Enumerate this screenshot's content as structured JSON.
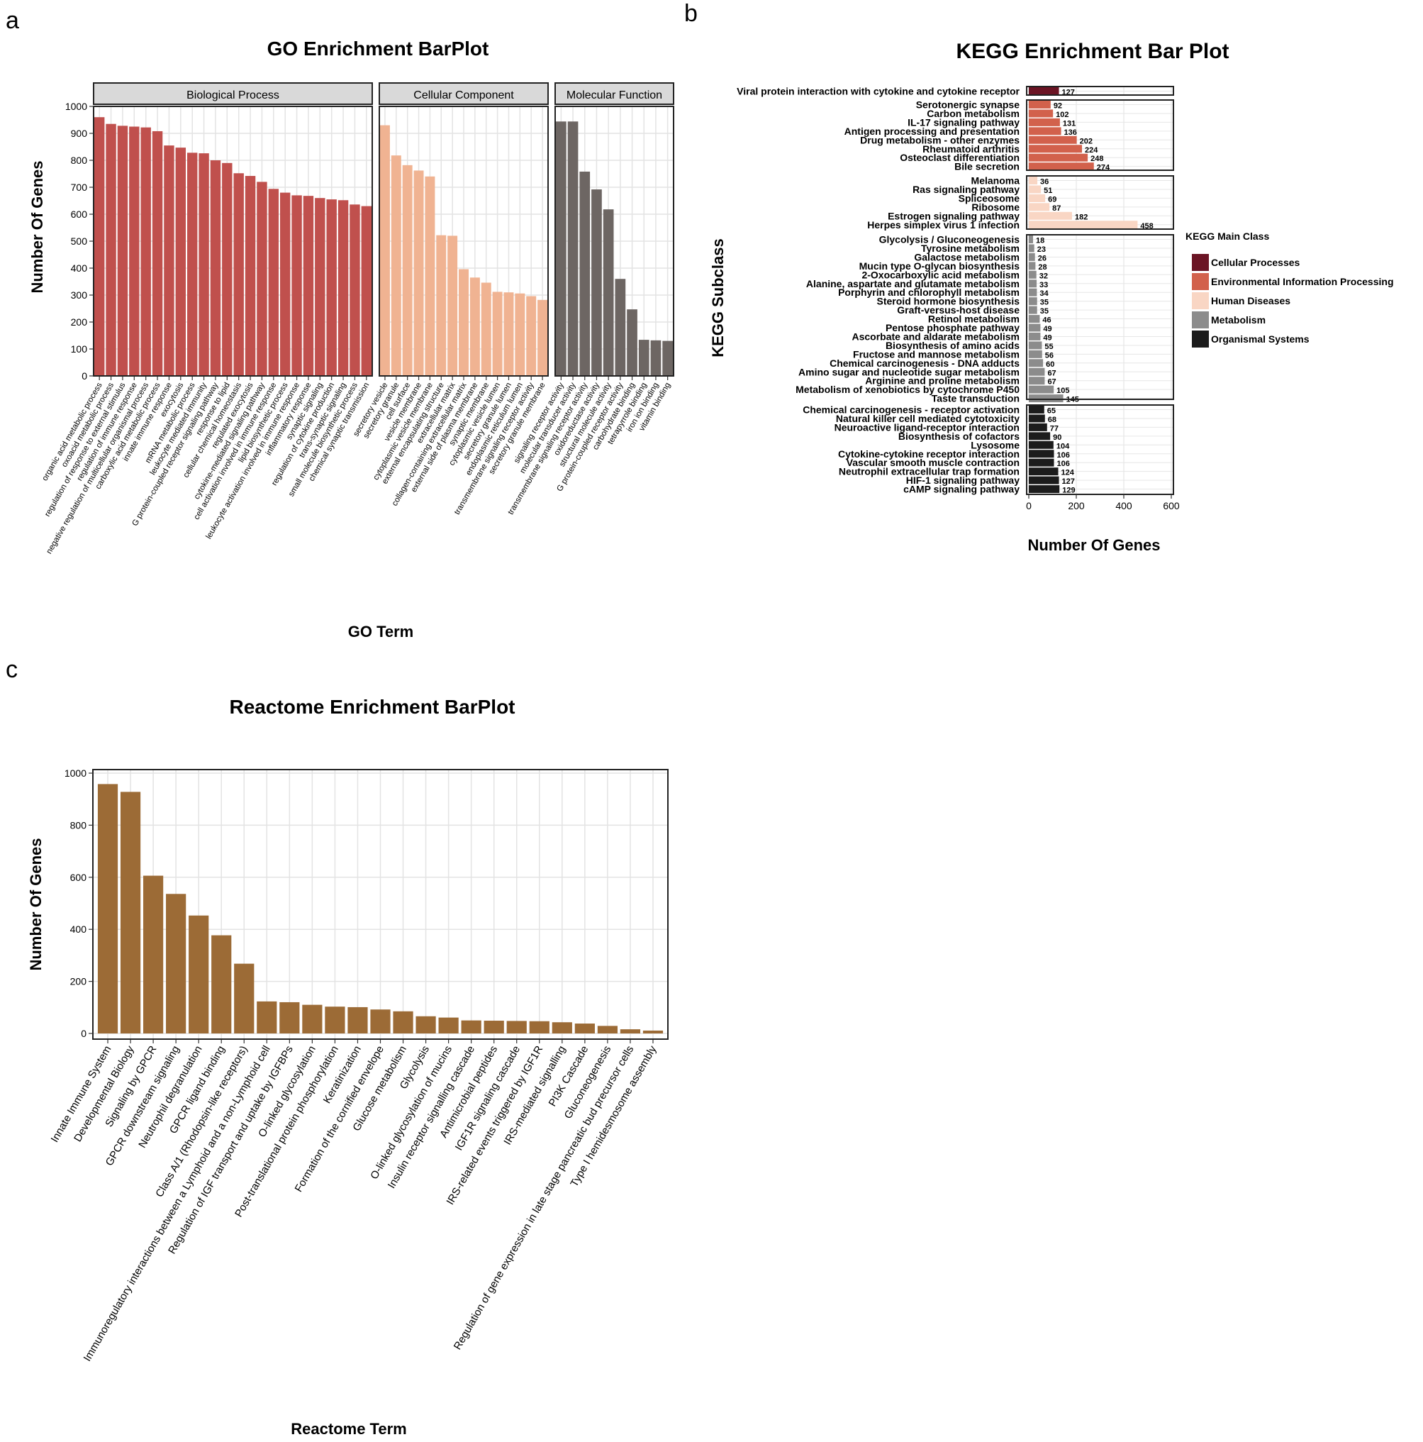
{
  "panel_labels": [
    "a",
    "b",
    "c"
  ],
  "chart_data": [
    {
      "type": "bar",
      "title": "GO Enrichment BarPlot",
      "xlabel": "GO Term",
      "ylabel": "Number Of Genes",
      "ylim": [
        0,
        1000
      ],
      "yticks": [
        0,
        100,
        200,
        300,
        400,
        500,
        600,
        700,
        800,
        900,
        1000
      ],
      "grid": true,
      "facets": [
        {
          "name": "Biological Process",
          "color": "#c0504d",
          "categories": [
            "organic acid metabolic process",
            "oxoacid metabolic process",
            "regulation of response to external stimulus",
            "regulation of immune response",
            "negative regulation of multicellular organismal process",
            "carboxylic acid metabolic process",
            "innate immune response",
            "exocytosis",
            "mRNA metabolic process",
            "leukocyte mediated immunity",
            "G protein-coupled receptor signaling pathway",
            "response to lipid",
            "cellular chemical homeostasis",
            "regulated exocytosis",
            "cytokine-mediated signaling pathway",
            "cell activation involved in immune response",
            "lipid biosynthetic process",
            "leukocyte activation involved in immune response",
            "inflammatory response",
            "synaptic signaling",
            "regulation of cytokine production",
            "trans-synaptic signaling",
            "small molecule biosynthetic process",
            "chemical synaptic transmission"
          ],
          "values": [
            960,
            935,
            928,
            925,
            922,
            908,
            855,
            847,
            828,
            826,
            800,
            790,
            752,
            742,
            720,
            694,
            680,
            670,
            668,
            660,
            655,
            652,
            636,
            630
          ]
        },
        {
          "name": "Cellular Component",
          "color": "#f0b392",
          "categories": [
            "secretory vesicle",
            "secretory granule",
            "cell surface",
            "vesicle membrane",
            "cytoplasmic vesicle membrane",
            "external encapsulating structure",
            "extracellular matrix",
            "collagen-containing extracellular matrix",
            "external side of plasma membrane",
            "synaptic membrane",
            "cytoplasmic vesicle lumen",
            "secretory granule lumen",
            "endoplasmic reticulum lumen",
            "transmembrane signaling receptor activity",
            "secretory granule membrane"
          ],
          "values": [
            930,
            818,
            782,
            762,
            740,
            522,
            520,
            396,
            365,
            346,
            312,
            310,
            306,
            296,
            282
          ]
        },
        {
          "name": "Molecular Function",
          "color": "#6d6663",
          "categories": [
            "signaling receptor activity",
            "molecular transducer activity",
            "transmembrane signaling receptor activity",
            "oxidoreductase activity",
            "structural molecule activity",
            "G protein-coupled receptor activity",
            "carbohydrate binding",
            "tetrapyrrole binding",
            "iron ion binding",
            "vitamin binding"
          ],
          "values": [
            944,
            944,
            758,
            692,
            618,
            360,
            247,
            134,
            132,
            130
          ]
        }
      ]
    },
    {
      "type": "bar",
      "orientation": "horizontal",
      "title": "KEGG Enrichment Bar Plot",
      "xlabel": "Number Of Genes",
      "ylabel": "KEGG Subclass",
      "xlim": [
        0,
        600
      ],
      "xticks": [
        0,
        200,
        400,
        600
      ],
      "grid": true,
      "legend": {
        "title": "KEGG Main Class",
        "placement": "right",
        "entries": [
          {
            "label": "Cellular Processes",
            "color": "#6b1424"
          },
          {
            "label": "Environmental Information Processing",
            "color": "#d2614c"
          },
          {
            "label": "Human Diseases",
            "color": "#f9d6c4"
          },
          {
            "label": "Metabolism",
            "color": "#8c8c8c"
          },
          {
            "label": "Organismal Systems",
            "color": "#1c1c1c"
          }
        ]
      },
      "groups": [
        {
          "name": "Cellular Processes",
          "color": "#6b1424",
          "items": [
            {
              "label": "Viral protein interaction with cytokine and cytokine receptor",
              "value": 127
            }
          ]
        },
        {
          "name": "Environmental Information Processing",
          "color": "#d2614c",
          "items": [
            {
              "label": "Serotonergic synapse",
              "value": 92
            },
            {
              "label": "Carbon metabolism",
              "value": 102
            },
            {
              "label": "IL-17 signaling pathway",
              "value": 131
            },
            {
              "label": "Antigen processing and presentation",
              "value": 136
            },
            {
              "label": "Drug metabolism - other enzymes",
              "value": 202
            },
            {
              "label": "Rheumatoid arthritis",
              "value": 224
            },
            {
              "label": "Osteoclast differentiation",
              "value": 248
            },
            {
              "label": "Bile secretion",
              "value": 274
            }
          ]
        },
        {
          "name": "Human Diseases",
          "color": "#f9d6c4",
          "items": [
            {
              "label": "Melanoma",
              "value": 36
            },
            {
              "label": "Ras signaling pathway",
              "value": 51
            },
            {
              "label": "Spliceosome",
              "value": 69
            },
            {
              "label": "Ribosome",
              "value": 87
            },
            {
              "label": "Estrogen signaling pathway",
              "value": 182
            },
            {
              "label": "Herpes simplex virus 1 infection",
              "value": 458
            }
          ]
        },
        {
          "name": "Metabolism",
          "color": "#8c8c8c",
          "items": [
            {
              "label": "Glycolysis / Gluconeogenesis",
              "value": 18
            },
            {
              "label": "Tyrosine metabolism",
              "value": 23
            },
            {
              "label": "Galactose metabolism",
              "value": 26
            },
            {
              "label": "Mucin type O-glycan biosynthesis",
              "value": 28
            },
            {
              "label": "2-Oxocarboxylic acid metabolism",
              "value": 32
            },
            {
              "label": "Alanine, aspartate and glutamate metabolism",
              "value": 33
            },
            {
              "label": "Porphyrin and chlorophyll metabolism",
              "value": 34
            },
            {
              "label": "Steroid hormone biosynthesis",
              "value": 35
            },
            {
              "label": "Graft-versus-host disease",
              "value": 35
            },
            {
              "label": "Retinol metabolism",
              "value": 46
            },
            {
              "label": "Pentose phosphate pathway",
              "value": 49
            },
            {
              "label": "Ascorbate and aldarate metabolism",
              "value": 49
            },
            {
              "label": "Biosynthesis of amino acids",
              "value": 55
            },
            {
              "label": "Fructose and mannose metabolism",
              "value": 56
            },
            {
              "label": "Chemical carcinogenesis - DNA adducts",
              "value": 60
            },
            {
              "label": "Amino sugar and nucleotide sugar metabolism",
              "value": 67
            },
            {
              "label": "Arginine and proline metabolism",
              "value": 67
            },
            {
              "label": "Metabolism of xenobiotics by cytochrome P450",
              "value": 105
            },
            {
              "label": "Taste transduction",
              "value": 145
            }
          ]
        },
        {
          "name": "Organismal Systems",
          "color": "#1c1c1c",
          "items": [
            {
              "label": "Chemical carcinogenesis - receptor activation",
              "value": 65
            },
            {
              "label": "Natural killer cell mediated cytotoxicity",
              "value": 68
            },
            {
              "label": "Neuroactive ligand-receptor interaction",
              "value": 77
            },
            {
              "label": "Biosynthesis of cofactors",
              "value": 90
            },
            {
              "label": "Lysosome",
              "value": 104
            },
            {
              "label": "Cytokine-cytokine receptor interaction",
              "value": 106
            },
            {
              "label": "Vascular smooth muscle contraction",
              "value": 106
            },
            {
              "label": "Neutrophil extracellular trap formation",
              "value": 124
            },
            {
              "label": "HIF-1 signaling pathway",
              "value": 127
            },
            {
              "label": "cAMP signaling pathway",
              "value": 129
            }
          ]
        }
      ]
    },
    {
      "type": "bar",
      "title": "Reactome Enrichment BarPlot",
      "xlabel": "Reactome Term",
      "ylabel": "Number Of Genes",
      "ylim": [
        0,
        1000
      ],
      "yticks": [
        0,
        200,
        400,
        600,
        800,
        1000
      ],
      "grid": true,
      "color": "#9c6b36",
      "categories": [
        "Innate Immune System",
        "Developmental Biology",
        "Signaling by GPCR",
        "GPCR downstream signaling",
        "Neutrophil degranulation",
        "GPCR ligand binding",
        "Class A/1 (Rhodopsin-like receptors)",
        "Immunoregulatory interactions between a Lymphoid and a non-Lymphoid cell",
        "Regulation of IGF transport and uptake by IGFBPs",
        "O-linked glycosylation",
        "Post-translational protein phosphorylation",
        "Keratinization",
        "Formation of the cornified envelope",
        "Glucose metabolism",
        "Glycolysis",
        "O-linked glycosylation of mucins",
        "Insulin receptor signalling cascade",
        "Antimicrobial peptides",
        "IGF1R signaling cascade",
        "IRS-related events triggered by IGF1R",
        "IRS-mediated signalling",
        "PI3K Cascade",
        "Gluconeogenesis",
        "Regulation of gene expression in late stage pancreatic bud precursor cells",
        "Type I hemidesmosome assembly"
      ],
      "values": [
        958,
        928,
        606,
        536,
        453,
        377,
        268,
        123,
        120,
        110,
        103,
        101,
        92,
        85,
        66,
        61,
        50,
        49,
        48,
        47,
        43,
        38,
        29,
        16,
        11
      ]
    }
  ]
}
